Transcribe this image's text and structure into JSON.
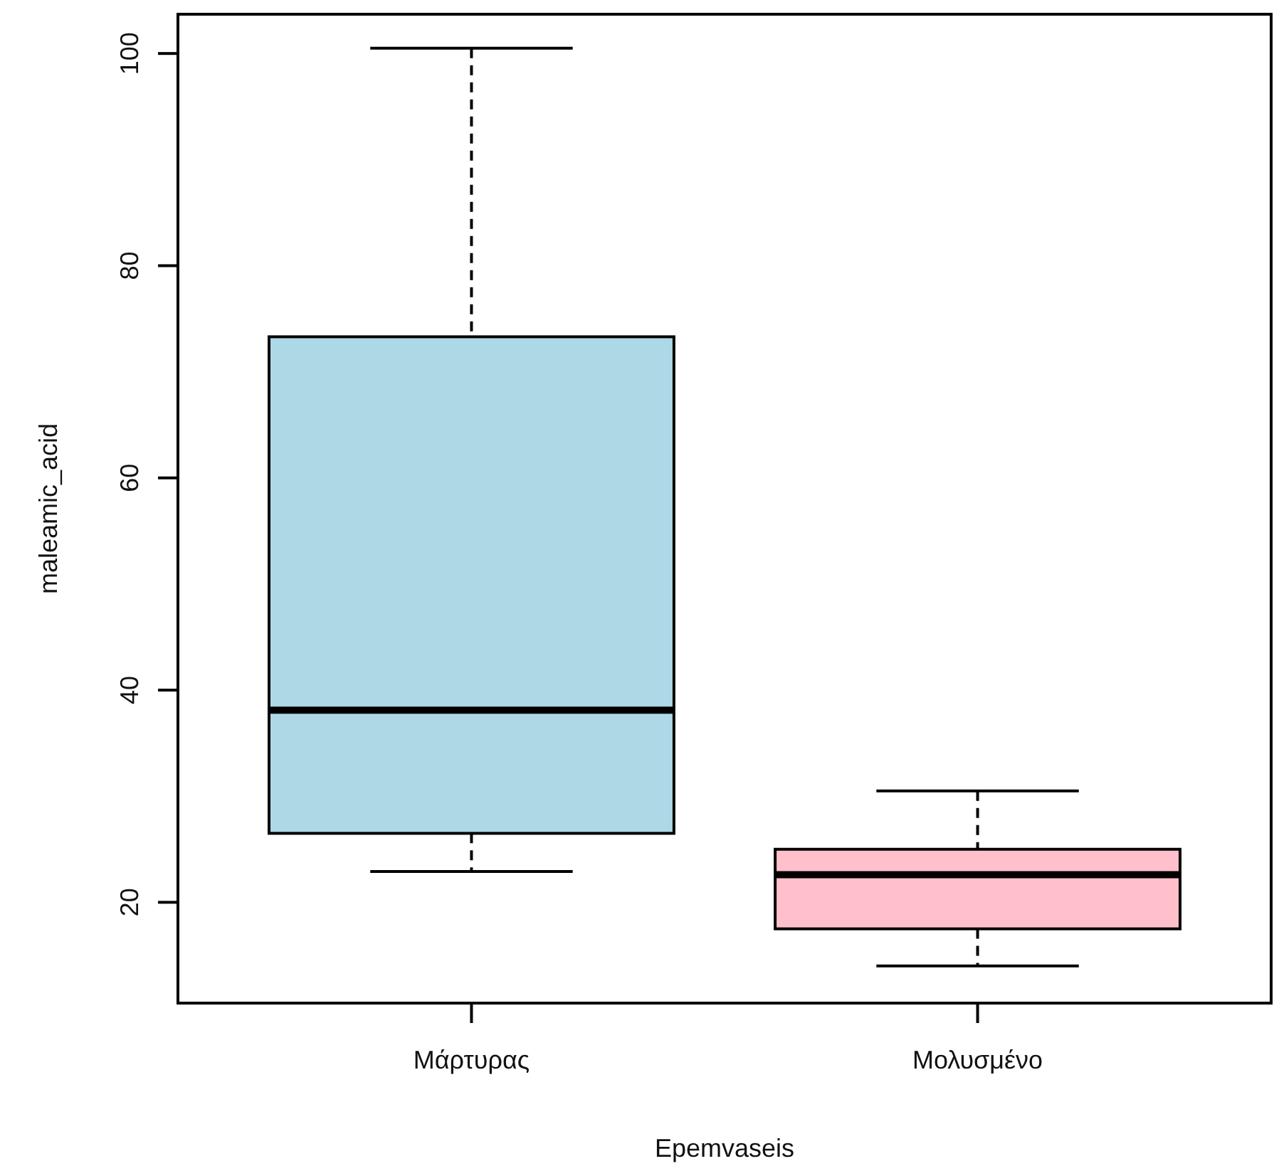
{
  "chart_data": {
    "type": "box",
    "xlabel": "Epemvaseis",
    "ylabel": "maleamic_acid",
    "categories": [
      "Μάρτυρας",
      "Μολυσμένο"
    ],
    "colors": [
      "#add8e6",
      "#ffc0cb"
    ],
    "boxes": [
      {
        "low": 22.9,
        "q1": 26.5,
        "median": 38.1,
        "q3": 73.3,
        "high": 100.5
      },
      {
        "low": 14.0,
        "q1": 17.5,
        "median": 22.6,
        "q3": 25.0,
        "high": 30.5
      }
    ],
    "ylim": [
      10.5,
      103.7
    ],
    "yticks": [
      20,
      40,
      60,
      80,
      100
    ],
    "grid": false,
    "line_style": "dashed"
  }
}
